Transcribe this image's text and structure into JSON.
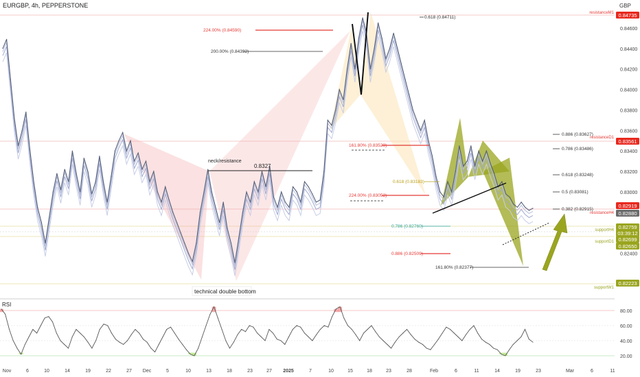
{
  "header": {
    "symbol": "EURGBP, 4h, PEPPERSTONE",
    "currency": "GBP"
  },
  "colors": {
    "price_line": "#55607a",
    "band_light": "#c7cde6",
    "band_mid": "#9fa9d0",
    "red_line": "#e53935",
    "gold": "#b8a01b",
    "olive": "#9aa51f",
    "red_badge": "#e8281e",
    "gray_badge": "#6b6b6b",
    "rsi_line": "#555555",
    "green_fill": "#a8e06a",
    "red_fill": "#f08a8a"
  },
  "chart_data": [
    {
      "type": "line",
      "title": "EURGBP, 4h, PEPPERSTONE",
      "ylim": [
        0.8213,
        0.8478
      ],
      "y_ticks": [
        "0.84600",
        "0.84400",
        "0.84200",
        "0.84000",
        "0.83800",
        "0.83600",
        "0.83400",
        "0.83200",
        "0.83000",
        "0.82800",
        "0.82600",
        "0.82400"
      ],
      "x_ticks": [
        "Nov",
        "6",
        "10",
        "14",
        "19",
        "22",
        "27",
        "Dec",
        "5",
        "10",
        "13",
        "18",
        "23",
        "27",
        "2025",
        "7",
        "10",
        "15",
        "18",
        "23",
        "28",
        "Feb",
        "6",
        "11",
        "14",
        "19",
        "23",
        "Mar",
        "6",
        "11"
      ],
      "price_badges": [
        {
          "label": "0.84735",
          "color": "red"
        },
        {
          "label": "0.83561",
          "color": "red"
        },
        {
          "label": "0.82919",
          "color": "red"
        },
        {
          "label": "0.82880",
          "color": "gray"
        },
        {
          "label": "0.82759",
          "color": "olive"
        },
        {
          "label": "03:39:12",
          "color": "olive"
        },
        {
          "label": "0.82699",
          "color": "olive"
        },
        {
          "label": "0.82650",
          "color": "olive"
        },
        {
          "label": "0.82223",
          "color": "olive"
        }
      ],
      "level_labels": [
        {
          "label": "resistanceM1",
          "color": "red"
        },
        {
          "label": "resistanceD1",
          "color": "red"
        },
        {
          "label": "resistanceH4",
          "color": "red"
        },
        {
          "label": "supportH4",
          "color": "olive"
        },
        {
          "label": "supportD1",
          "color": "olive"
        },
        {
          "label": "supportW1",
          "color": "olive"
        }
      ],
      "fib_labels": [
        {
          "label": "0.618 (0.84711)",
          "color": "dark"
        },
        {
          "label": "224.00% (0.84590)",
          "color": "red"
        },
        {
          "label": "200.00% (0.84392)",
          "color": "dark"
        },
        {
          "label": "161.80% (0.83520)",
          "color": "red"
        },
        {
          "label": "0.618 (0.83183)",
          "color": "gold"
        },
        {
          "label": "224.00% (0.83052)",
          "color": "red"
        },
        {
          "label": "0.786 (0.82760)",
          "color": "teal"
        },
        {
          "label": "0.886 (0.82509)",
          "color": "red"
        },
        {
          "label": "161.80% (0.82377)",
          "color": "dark"
        },
        {
          "label": "0.886 (0.83627)",
          "color": "dark"
        },
        {
          "label": "0.786 (0.83486)",
          "color": "dark"
        },
        {
          "label": "0.618 (0.83248)",
          "color": "dark"
        },
        {
          "label": "0.5 (0.83081)",
          "color": "dark"
        },
        {
          "label": "0.382 (0.82915)",
          "color": "dark"
        }
      ],
      "annotations": {
        "neck_label": "neck/resistance",
        "neck_value": "0.8327",
        "double_bottom": "technical double bottom"
      },
      "series": [
        {
          "values": [
            0.844,
            0.8449,
            0.841,
            0.8372,
            0.8345,
            0.836,
            0.8378,
            0.8342,
            0.831,
            0.8285,
            0.827,
            0.825,
            0.8275,
            0.83,
            0.8318,
            0.8302,
            0.8322,
            0.831,
            0.834,
            0.8318,
            0.83,
            0.8333,
            0.832,
            0.8298,
            0.831,
            0.8335,
            0.831,
            0.829,
            0.8315,
            0.834,
            0.835,
            0.8358,
            0.834,
            0.835,
            0.833,
            0.8338,
            0.8322,
            0.833,
            0.831,
            0.832,
            0.83,
            0.829,
            0.8305,
            0.8292,
            0.828,
            0.827,
            0.826,
            0.825,
            0.824,
            0.8232,
            0.825,
            0.828,
            0.83,
            0.8322,
            0.83,
            0.8285,
            0.827,
            0.829,
            0.8265,
            0.825,
            0.8231,
            0.8255,
            0.828,
            0.83,
            0.829,
            0.831,
            0.83,
            0.832,
            0.8305,
            0.8325,
            0.8295,
            0.8285,
            0.83,
            0.829,
            0.8285,
            0.8305,
            0.83,
            0.829,
            0.831,
            0.8305,
            0.8298,
            0.829,
            0.8292,
            0.832,
            0.837,
            0.8365,
            0.838,
            0.84,
            0.839,
            0.842,
            0.8445,
            0.842,
            0.845,
            0.847,
            0.8455,
            0.842,
            0.844,
            0.8465,
            0.845,
            0.843,
            0.844,
            0.8455,
            0.844,
            0.8425,
            0.841,
            0.8395,
            0.838,
            0.837,
            0.836,
            0.837,
            0.835,
            0.8335,
            0.8315,
            0.83,
            0.8295,
            0.831,
            0.83,
            0.832,
            0.8345,
            0.8325,
            0.833,
            0.8345,
            0.8325,
            0.834,
            0.833,
            0.834,
            0.8328,
            0.8318,
            0.8305,
            0.831,
            0.8298,
            0.8295,
            0.8288,
            0.8285,
            0.829,
            0.8285,
            0.8282,
            0.8284
          ]
        }
      ]
    },
    {
      "type": "line",
      "title": "RSI",
      "ylim": [
        10,
        90
      ],
      "y_ticks": [
        "80.00",
        "60.00",
        "40.00",
        "20.00"
      ],
      "series": [
        {
          "values": [
            82,
            75,
            55,
            40,
            30,
            22,
            35,
            45,
            55,
            50,
            60,
            70,
            72,
            65,
            50,
            40,
            35,
            30,
            45,
            55,
            50,
            45,
            38,
            30,
            40,
            55,
            62,
            60,
            50,
            42,
            38,
            35,
            40,
            48,
            55,
            50,
            42,
            38,
            30,
            25,
            35,
            45,
            55,
            58,
            50,
            42,
            35,
            28,
            22,
            20,
            30,
            45,
            60,
            75,
            85,
            70,
            55,
            40,
            30,
            38,
            48,
            55,
            52,
            60,
            58,
            50,
            45,
            40,
            55,
            50,
            42,
            40,
            35,
            45,
            55,
            60,
            58,
            50,
            45,
            40,
            48,
            55,
            60,
            58,
            72,
            82,
            85,
            70,
            60,
            55,
            48,
            40,
            50,
            55,
            60,
            52,
            45,
            40,
            35,
            30,
            38,
            45,
            50,
            55,
            48,
            42,
            38,
            35,
            30,
            28,
            35,
            42,
            50,
            58,
            55,
            50,
            45,
            40,
            48,
            55,
            60,
            50,
            42,
            38,
            35,
            30,
            28,
            22,
            20,
            28,
            35,
            40,
            45,
            55,
            42,
            38
          ]
        }
      ]
    }
  ]
}
